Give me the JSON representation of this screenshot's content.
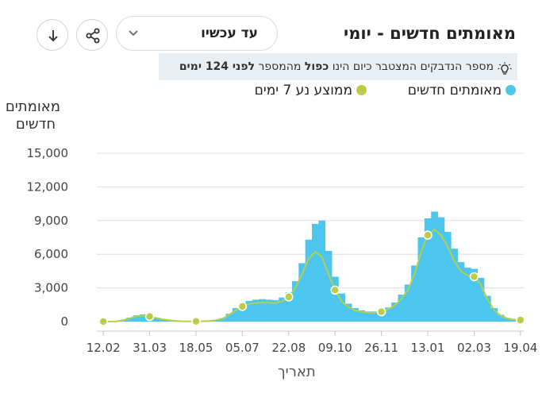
{
  "header": {
    "title": "מאומתים חדשים - יומי",
    "period_select_value": "עד עכשיו"
  },
  "tip": {
    "text_before": "מספר הנדבקים המצטבר כיום הינו ",
    "bold_word": "כפול",
    "text_middle": " מהמספר ",
    "bold_tail": "לפני 124 ימים"
  },
  "icons": {
    "download": "download-icon",
    "share": "share-icon",
    "tip": "lightbulb-icon",
    "dropdown": "chevron-down-icon"
  },
  "colors": {
    "bars": "#4cc6ee",
    "avg_line": "#b5cf4c",
    "avg_dot": "#bccc46"
  },
  "chart_data": {
    "type": "bar",
    "title": "מאומתים חדשים - יומי",
    "ylabel": "מאומתים חדשים",
    "xlabel": "תאריך",
    "ylim": [
      0,
      15000
    ],
    "yticks": [
      0,
      3000,
      6000,
      9000,
      12000,
      15000
    ],
    "ytick_labels": [
      "0",
      "3,000",
      "6,000",
      "9,000",
      "12,000",
      "15,000"
    ],
    "xtick_labels": [
      "12.02",
      "31.03",
      "18.05",
      "05.07",
      "22.08",
      "09.10",
      "26.11",
      "13.01",
      "02.03",
      "19.04"
    ],
    "grid": true,
    "legend": "top",
    "series": [
      {
        "name": "מאומתים חדשים",
        "type": "bar",
        "weekly_values": [
          0,
          0,
          30,
          150,
          350,
          560,
          640,
          520,
          360,
          230,
          120,
          60,
          30,
          20,
          20,
          30,
          60,
          150,
          300,
          700,
          1200,
          1600,
          1850,
          1950,
          2000,
          1950,
          1900,
          2150,
          2600,
          3600,
          5200,
          7300,
          8700,
          9000,
          6300,
          4000,
          2500,
          1600,
          1200,
          1000,
          900,
          900,
          1000,
          1250,
          1700,
          2400,
          3300,
          5000,
          7500,
          9200,
          9800,
          9300,
          8000,
          6500,
          5300,
          4800,
          4700,
          3900,
          2300,
          1200,
          600,
          300,
          200,
          150
        ]
      },
      {
        "name": "ממוצע נע 7 ימים",
        "type": "line",
        "weekly_values": [
          0,
          0,
          20,
          120,
          300,
          480,
          540,
          450,
          320,
          200,
          110,
          55,
          30,
          20,
          20,
          28,
          55,
          130,
          260,
          600,
          1000,
          1350,
          1550,
          1650,
          1700,
          1680,
          1650,
          1800,
          2200,
          3000,
          4200,
          5600,
          6200,
          5800,
          4200,
          2800,
          1800,
          1300,
          1000,
          870,
          800,
          800,
          880,
          1100,
          1450,
          2000,
          2800,
          4200,
          6200,
          7700,
          8200,
          7700,
          6700,
          5400,
          4500,
          4100,
          4000,
          3300,
          2000,
          1050,
          530,
          280,
          180,
          130
        ],
        "marker_weeks": [
          0,
          7,
          14,
          21,
          28,
          35,
          42,
          49,
          56,
          63
        ]
      }
    ]
  }
}
